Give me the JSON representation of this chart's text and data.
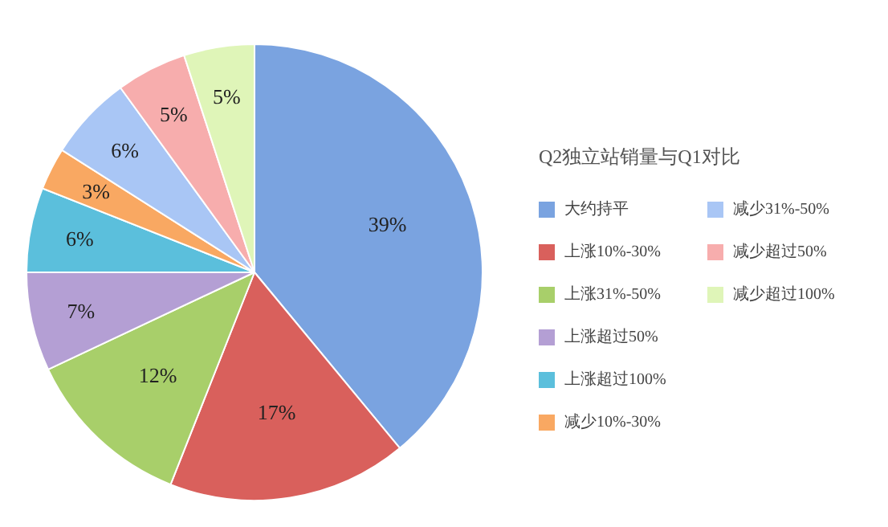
{
  "chart_data": {
    "type": "pie",
    "legend_title": "Q2独立站销量与Q1对比",
    "categories": [
      "大约持平",
      "上涨10%-30%",
      "上涨31%-50%",
      "上涨超过50%",
      "上涨超过100%",
      "减少10%-30%",
      "减少31%-50%",
      "减少超过50%",
      "减少超过100%"
    ],
    "values": [
      39,
      17,
      12,
      7,
      6,
      3,
      6,
      5,
      5
    ],
    "value_labels": [
      "39%",
      "17%",
      "12%",
      "7%",
      "6%",
      "3%",
      "6%",
      "5%",
      "5%"
    ],
    "colors": [
      "#7aa3e0",
      "#d9605c",
      "#a8cf6a",
      "#b49fd4",
      "#5bbfdc",
      "#f9a862",
      "#a9c6f5",
      "#f7adad",
      "#dff5b8"
    ],
    "legend": "right"
  }
}
